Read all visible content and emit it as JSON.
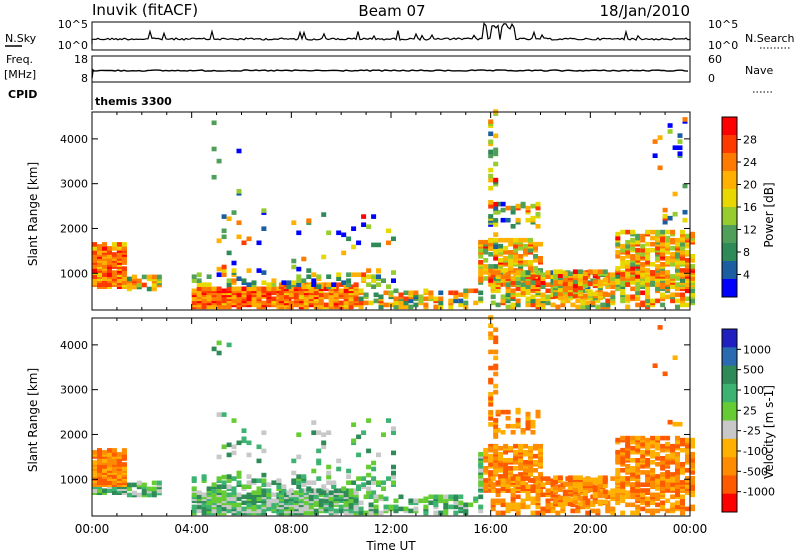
{
  "header": {
    "station": "Inuvik (fitACF)",
    "beam": "Beam 07",
    "date": "18/Jan/2010"
  },
  "sky_panel": {
    "left_label": "N.Sky",
    "left_ticks": [
      "10^5",
      "10^0"
    ],
    "right_label": "N.Search",
    "right_ticks": [
      "10^5",
      "10^0"
    ]
  },
  "freq_panel": {
    "left_label_1": "Freq.",
    "left_label_2": "[MHz]",
    "left_ticks": [
      "18",
      "8"
    ],
    "right_label": "Nave",
    "right_ticks": [
      "60",
      "0"
    ]
  },
  "cpid": {
    "label": "CPID",
    "value": "themis 3300"
  },
  "chart_data": [
    {
      "type": "heatmap",
      "name": "power",
      "ylabel": "Slant Range [km]",
      "yticks": [
        "4000",
        "3000",
        "2000",
        "1000"
      ],
      "ylim": [
        180,
        4600
      ],
      "xlim_hours": [
        0,
        24
      ],
      "colorbar_label": "Power [dB]",
      "colorbar_ticks": [
        "28",
        "24",
        "20",
        "16",
        "12",
        "8",
        "4"
      ],
      "colorbar_colors": [
        "#ff0000",
        "#ff3a00",
        "#ff7a00",
        "#ffb000",
        "#e8d800",
        "#97cc2e",
        "#4f9f5a",
        "#2e8b57",
        "#1b5fa0",
        "#0000ff"
      ]
    },
    {
      "type": "heatmap",
      "name": "velocity",
      "ylabel": "Slant Range [km]",
      "yticks": [
        "4000",
        "3000",
        "2000",
        "1000"
      ],
      "ylim": [
        180,
        4600
      ],
      "xlim_hours": [
        0,
        24
      ],
      "xticks": [
        "00:00",
        "04:00",
        "08:00",
        "12:00",
        "16:00",
        "20:00",
        "00:00"
      ],
      "xlabel": "Time UT",
      "colorbar_label": "Velocity [m s-1]",
      "colorbar_ticks": [
        "1000",
        "500",
        "100",
        "25",
        "-25",
        "-100",
        "-500",
        "-1000"
      ],
      "colorbar_colors": [
        "#2020c0",
        "#2a6ab0",
        "#2e8b57",
        "#3cb371",
        "#66cc33",
        "#c8c8c8",
        "#ffb000",
        "#ff8c00",
        "#ff5a00",
        "#ff0000"
      ]
    }
  ]
}
